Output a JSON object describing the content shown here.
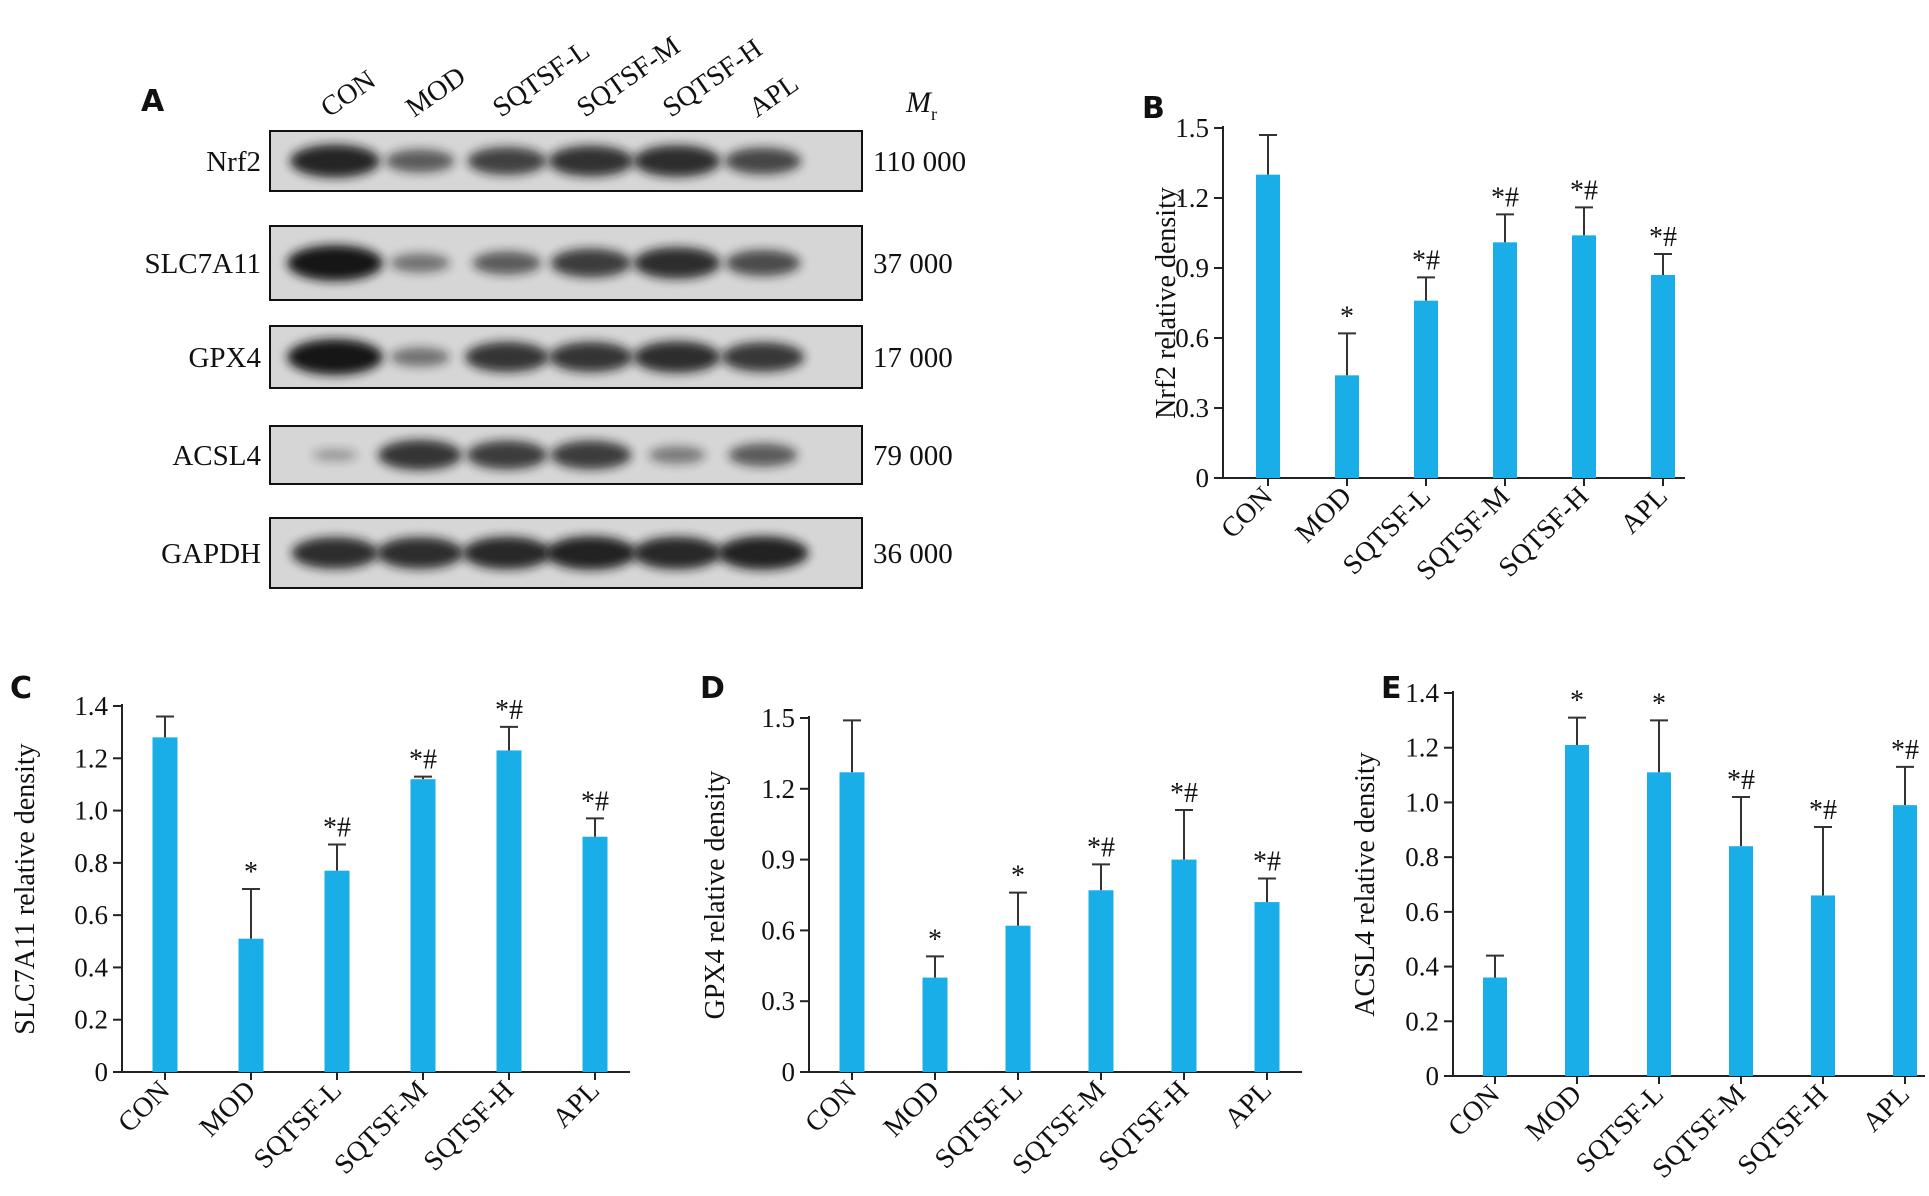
{
  "colors": {
    "bar": "#1aaee8",
    "axis": "#222222",
    "error": "#333333",
    "blot_bg": "#d6d6d6",
    "band": "#141414"
  },
  "western_blot": {
    "panel_label": "A",
    "lanes": [
      "CON",
      "MOD",
      "SQTSF-L",
      "SQTSF-M",
      "SQTSF-H",
      "APL"
    ],
    "mr_label": {
      "main": "M",
      "sub": "r"
    },
    "rows": [
      {
        "protein": "Nrf2",
        "mr": "110 000",
        "intensity": [
          0.9,
          0.55,
          0.72,
          0.82,
          0.85,
          0.68
        ]
      },
      {
        "protein": "SLC7A11",
        "mr": "37 000",
        "intensity": [
          1.0,
          0.4,
          0.55,
          0.75,
          0.85,
          0.65
        ]
      },
      {
        "protein": "GPX4",
        "mr": "17 000",
        "intensity": [
          1.0,
          0.4,
          0.8,
          0.8,
          0.85,
          0.78
        ]
      },
      {
        "protein": "ACSL4",
        "mr": "79 000",
        "intensity": [
          0.15,
          0.8,
          0.75,
          0.75,
          0.35,
          0.55
        ]
      },
      {
        "protein": "GAPDH",
        "mr": "36 000",
        "intensity": [
          0.85,
          0.85,
          0.88,
          0.92,
          0.88,
          0.92
        ]
      }
    ]
  },
  "chart_data": [
    {
      "panel": "B",
      "type": "bar",
      "ylabel": "Nrf2 relative density",
      "categories": [
        "CON",
        "MOD",
        "SQTSF-L",
        "SQTSF-M",
        "SQTSF-H",
        "APL"
      ],
      "values": [
        1.3,
        0.44,
        0.76,
        1.01,
        1.04,
        0.87
      ],
      "errors": [
        0.17,
        0.18,
        0.1,
        0.12,
        0.12,
        0.09
      ],
      "annotations": [
        "",
        "*",
        "*#",
        "*#",
        "*#",
        "*#"
      ],
      "ylim": [
        0,
        1.5
      ],
      "yticks": [
        "0",
        "0.3",
        "0.6",
        "0.9",
        "1.2",
        "1.5"
      ]
    },
    {
      "panel": "C",
      "type": "bar",
      "ylabel": "SLC7A11 relative density",
      "categories": [
        "CON",
        "MOD",
        "SQTSF-L",
        "SQTSF-M",
        "SQTSF-H",
        "APL"
      ],
      "values": [
        1.28,
        0.51,
        0.77,
        1.12,
        1.23,
        0.9
      ],
      "errors": [
        0.08,
        0.19,
        0.1,
        0.01,
        0.09,
        0.07
      ],
      "annotations": [
        "",
        "*",
        "*#",
        "*#",
        "*#",
        "*#"
      ],
      "ylim": [
        0,
        1.4
      ],
      "yticks": [
        "0",
        "0.2",
        "0.4",
        "0.6",
        "0.8",
        "1.0",
        "1.2",
        "1.4"
      ]
    },
    {
      "panel": "D",
      "type": "bar",
      "ylabel": "GPX4 relative density",
      "categories": [
        "CON",
        "MOD",
        "SQTSF-L",
        "SQTSF-M",
        "SQTSF-H",
        "APL"
      ],
      "values": [
        1.27,
        0.4,
        0.62,
        0.77,
        0.9,
        0.72
      ],
      "errors": [
        0.22,
        0.09,
        0.14,
        0.11,
        0.21,
        0.1
      ],
      "annotations": [
        "",
        "*",
        "*",
        "*#",
        "*#",
        "*#"
      ],
      "ylim": [
        0,
        1.5
      ],
      "yticks": [
        "0",
        "0.3",
        "0.6",
        "0.9",
        "1.2",
        "1.5"
      ]
    },
    {
      "panel": "E",
      "type": "bar",
      "ylabel": "ACSL4 relative density",
      "categories": [
        "CON",
        "MOD",
        "SQTSF-L",
        "SQTSF-M",
        "SQTSF-H",
        "APL"
      ],
      "values": [
        0.36,
        1.21,
        1.11,
        0.84,
        0.66,
        0.99
      ],
      "errors": [
        0.08,
        0.1,
        0.19,
        0.18,
        0.25,
        0.14
      ],
      "annotations": [
        "",
        "*",
        "*",
        "*#",
        "*#",
        "*#"
      ],
      "ylim": [
        0,
        1.4
      ],
      "yticks": [
        "0",
        "0.2",
        "0.4",
        "0.6",
        "0.8",
        "1.0",
        "1.2",
        "1.4"
      ]
    }
  ]
}
